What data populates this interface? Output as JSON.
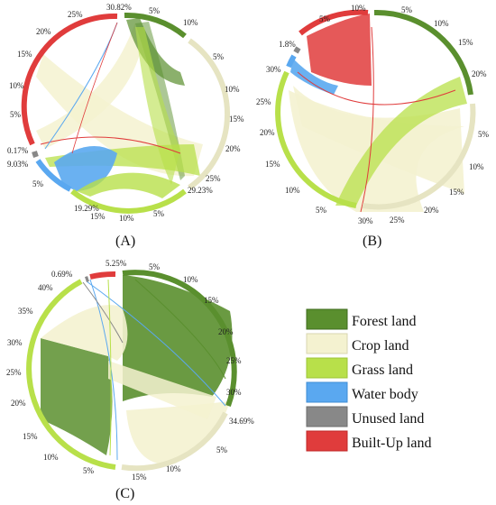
{
  "colors": {
    "forest": "#5a8f2e",
    "crop": "#f4f2d0",
    "grass": "#b8e04a",
    "water": "#5aa8f0",
    "unused": "#888888",
    "builtup": "#e03c3c"
  },
  "legend": [
    {
      "label": "Forest land",
      "color": "#5a8f2e"
    },
    {
      "label": "Crop land",
      "color": "#f4f2d0"
    },
    {
      "label": "Grass land",
      "color": "#b8e04a"
    },
    {
      "label": "Water body",
      "color": "#5aa8f0"
    },
    {
      "label": "Unused land",
      "color": "#888888"
    },
    {
      "label": "Built-Up land",
      "color": "#e03c3c"
    }
  ],
  "panels": [
    {
      "label": "(A)",
      "totals": [
        "30.82%",
        "29.23%",
        "19.29%",
        "9.03%",
        "0.17%"
      ],
      "ticks": [
        "5%",
        "10%",
        "5%",
        "10%",
        "15%",
        "20%",
        "25%",
        "5%",
        "10%",
        "15%",
        "5%",
        "5%",
        "10%",
        "15%",
        "20%",
        "25%"
      ]
    },
    {
      "label": "(B)",
      "totals": [
        "1.8%",
        "30%"
      ],
      "ticks": [
        "10%",
        "5%",
        "10%",
        "15%",
        "20%",
        "5%",
        "10%",
        "15%",
        "20%",
        "25%",
        "5%",
        "10%",
        "15%",
        "20%",
        "25%",
        "30%",
        "5%"
      ]
    },
    {
      "label": "(C)",
      "totals": [
        "5.25%",
        "0.69%",
        "34.69%"
      ],
      "ticks": [
        "5%",
        "10%",
        "15%",
        "20%",
        "25%",
        "30%",
        "5%",
        "10%",
        "15%",
        "5%",
        "10%",
        "15%",
        "20%",
        "25%",
        "30%",
        "35%",
        "40%"
      ]
    }
  ]
}
